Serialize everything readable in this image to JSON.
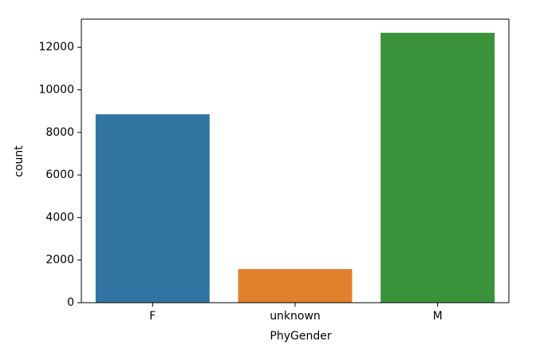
{
  "chart_data": {
    "type": "bar",
    "categories": [
      "F",
      "unknown",
      "M"
    ],
    "values": [
      8850,
      1580,
      12680
    ],
    "colors": [
      "#3274a1",
      "#e1812c",
      "#3a923a"
    ],
    "x_label": "PhyGender",
    "y_label": "count",
    "ylim": [
      0,
      13320
    ],
    "yticks": [
      0,
      2000,
      4000,
      6000,
      8000,
      10000,
      12000
    ],
    "grid": false
  }
}
